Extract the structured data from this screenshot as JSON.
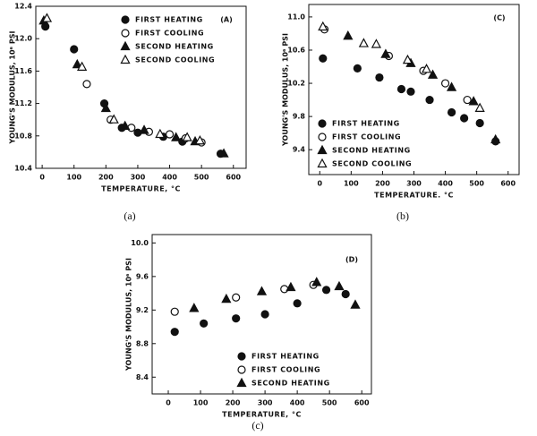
{
  "chart_data": [
    {
      "type": "scatter",
      "title": "(A)",
      "caption": "(a)",
      "xlabel": "TEMPERATURE, °C",
      "ylabel": "YOUNG'S MODULUS, 10⁶ PSI",
      "xlim": [
        -20,
        640
      ],
      "ylim": [
        10.4,
        12.4
      ],
      "xticks": [
        0,
        100,
        200,
        300,
        400,
        500,
        600
      ],
      "yticks": [
        10.4,
        10.8,
        11.2,
        11.6,
        {
          "value": 12,
          "label": "12.0"
        },
        12.4
      ],
      "legend": "upper right",
      "series": [
        {
          "name": "FIRST HEATING",
          "marker": "circle-filled",
          "color": "#111111",
          "x": [
            10,
            100,
            195,
            250,
            300,
            380,
            440,
            560
          ],
          "values": [
            12.15,
            11.87,
            11.2,
            10.9,
            10.84,
            10.79,
            10.73,
            10.58
          ]
        },
        {
          "name": "FIRST COOLING",
          "marker": "circle-open",
          "color": "#111111",
          "x": [
            140,
            215,
            280,
            335,
            400,
            450,
            500
          ],
          "values": [
            11.44,
            11.0,
            10.9,
            10.85,
            10.82,
            10.77,
            10.72
          ]
        },
        {
          "name": "SECOND HEATING",
          "marker": "triangle-filled",
          "color": "#111111",
          "x": [
            5,
            110,
            200,
            260,
            320,
            420,
            480,
            570
          ],
          "values": [
            12.22,
            11.68,
            11.14,
            10.92,
            10.87,
            10.78,
            10.73,
            10.58
          ]
        },
        {
          "name": "SECOND COOLING",
          "marker": "triangle-open",
          "color": "#111111",
          "x": [
            15,
            125,
            225,
            370,
            455,
            495
          ],
          "values": [
            12.25,
            11.65,
            11.0,
            10.82,
            10.78,
            10.74
          ]
        }
      ]
    },
    {
      "type": "scatter",
      "title": "(C)",
      "caption": "(b)",
      "xlabel": "TEMPERATURE. °C",
      "ylabel": "YOUNG'S MODULUS, 10⁶ PSI",
      "xlim": [
        -35,
        635
      ],
      "ylim": [
        9.1,
        11.15
      ],
      "xticks": [
        0,
        100,
        200,
        300,
        400,
        500,
        600
      ],
      "yticks": [
        9.4,
        9.8,
        10.2,
        10.6,
        {
          "value": 11,
          "label": "11.0"
        }
      ],
      "legend": "lower left",
      "series": [
        {
          "name": "FIRST HEATING",
          "marker": "circle-filled",
          "color": "#111111",
          "x": [
            10,
            120,
            190,
            260,
            290,
            350,
            420,
            460,
            510,
            560
          ],
          "values": [
            10.5,
            10.38,
            10.27,
            10.13,
            10.1,
            10.0,
            9.85,
            9.78,
            9.72,
            9.5
          ]
        },
        {
          "name": "FIRST COOLING",
          "marker": "circle-open",
          "color": "#111111",
          "x": [
            15,
            220,
            330,
            400,
            470
          ],
          "values": [
            10.85,
            10.53,
            10.35,
            10.2,
            10.0
          ]
        },
        {
          "name": "SECOND HEATING",
          "marker": "triangle-filled",
          "color": "#111111",
          "x": [
            90,
            210,
            290,
            360,
            420,
            490,
            560
          ],
          "values": [
            10.77,
            10.55,
            10.44,
            10.3,
            10.15,
            9.98,
            9.52
          ]
        },
        {
          "name": "SECOND COOLING",
          "marker": "triangle-open",
          "color": "#111111",
          "x": [
            10,
            140,
            180,
            280,
            340,
            510
          ],
          "values": [
            10.88,
            10.68,
            10.67,
            10.48,
            10.37,
            9.9
          ]
        }
      ]
    },
    {
      "type": "scatter",
      "title": "(D)",
      "caption": "(c)",
      "xlabel": "TEMPERATURE, °C",
      "ylabel": "YOUNG'S MODULUS, 10⁶ PSI",
      "xlim": [
        -50,
        630
      ],
      "ylim": [
        8.2,
        10.1
      ],
      "xticks": [
        0,
        100,
        200,
        300,
        400,
        500,
        600
      ],
      "yticks": [
        8.4,
        8.8,
        9.2,
        9.6,
        {
          "value": 10,
          "label": "10.0"
        }
      ],
      "legend": "lower right",
      "series": [
        {
          "name": "FIRST HEATING",
          "marker": "circle-filled",
          "color": "#111111",
          "x": [
            20,
            110,
            210,
            300,
            400,
            490,
            550
          ],
          "values": [
            8.94,
            9.04,
            9.1,
            9.15,
            9.28,
            9.44,
            9.39
          ]
        },
        {
          "name": "FIRST COOLING",
          "marker": "circle-open",
          "color": "#111111",
          "x": [
            20,
            210,
            360,
            450
          ],
          "values": [
            9.18,
            9.35,
            9.45,
            9.5
          ]
        },
        {
          "name": "SECOND HEATING",
          "marker": "triangle-filled",
          "color": "#111111",
          "x": [
            80,
            180,
            290,
            380,
            460,
            530,
            580
          ],
          "values": [
            9.22,
            9.33,
            9.42,
            9.47,
            9.53,
            9.48,
            9.26
          ]
        }
      ]
    }
  ]
}
